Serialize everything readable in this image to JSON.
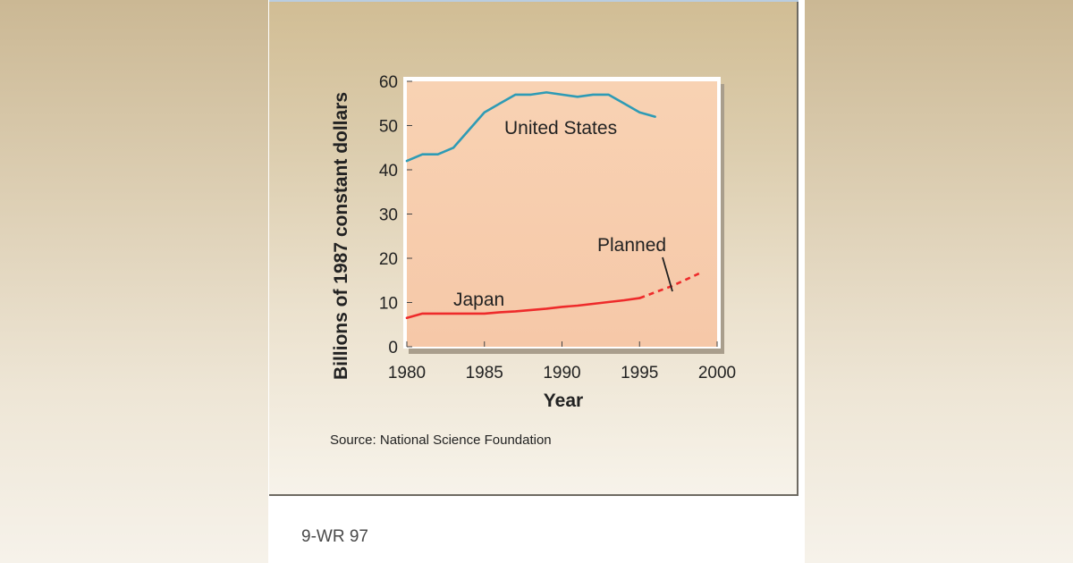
{
  "chart_data": {
    "type": "line",
    "xlabel": "Year",
    "ylabel": "Billions of 1987 constant dollars",
    "xlim": [
      1980,
      2000
    ],
    "ylim": [
      0,
      60
    ],
    "x_ticks": [
      "1980",
      "1985",
      "1990",
      "1995",
      "2000"
    ],
    "y_ticks": [
      "0",
      "10",
      "20",
      "30",
      "40",
      "50",
      "60"
    ],
    "grid": false,
    "series": [
      {
        "name": "United States",
        "color": "#2e9bb5",
        "x": [
          1980,
          1981,
          1982,
          1983,
          1984,
          1985,
          1986,
          1987,
          1988,
          1989,
          1990,
          1991,
          1992,
          1993,
          1994,
          1995,
          1996
        ],
        "values": [
          42,
          43.5,
          43.5,
          45,
          49,
          53,
          55,
          57,
          57,
          57.5,
          57,
          56.5,
          57,
          57,
          55,
          53,
          52
        ]
      },
      {
        "name": "Japan",
        "color": "#ee2b2b",
        "x": [
          1980,
          1981,
          1982,
          1983,
          1984,
          1985,
          1986,
          1987,
          1988,
          1989,
          1990,
          1991,
          1992,
          1993,
          1994,
          1995
        ],
        "values": [
          6.5,
          7.5,
          7.5,
          7.5,
          7.5,
          7.5,
          7.8,
          8,
          8.3,
          8.6,
          9,
          9.3,
          9.7,
          10.1,
          10.5,
          11
        ]
      },
      {
        "name": "Planned",
        "color": "#ee2b2b",
        "dashed": true,
        "x": [
          1995,
          1996,
          1997,
          1998,
          1999
        ],
        "values": [
          11,
          12.3,
          13.6,
          15.2,
          16.8
        ]
      }
    ],
    "annotations": [
      "United States",
      "Japan",
      "Planned"
    ],
    "source": "Source: National Science Foundation"
  },
  "caption_id": "9-WR 97"
}
